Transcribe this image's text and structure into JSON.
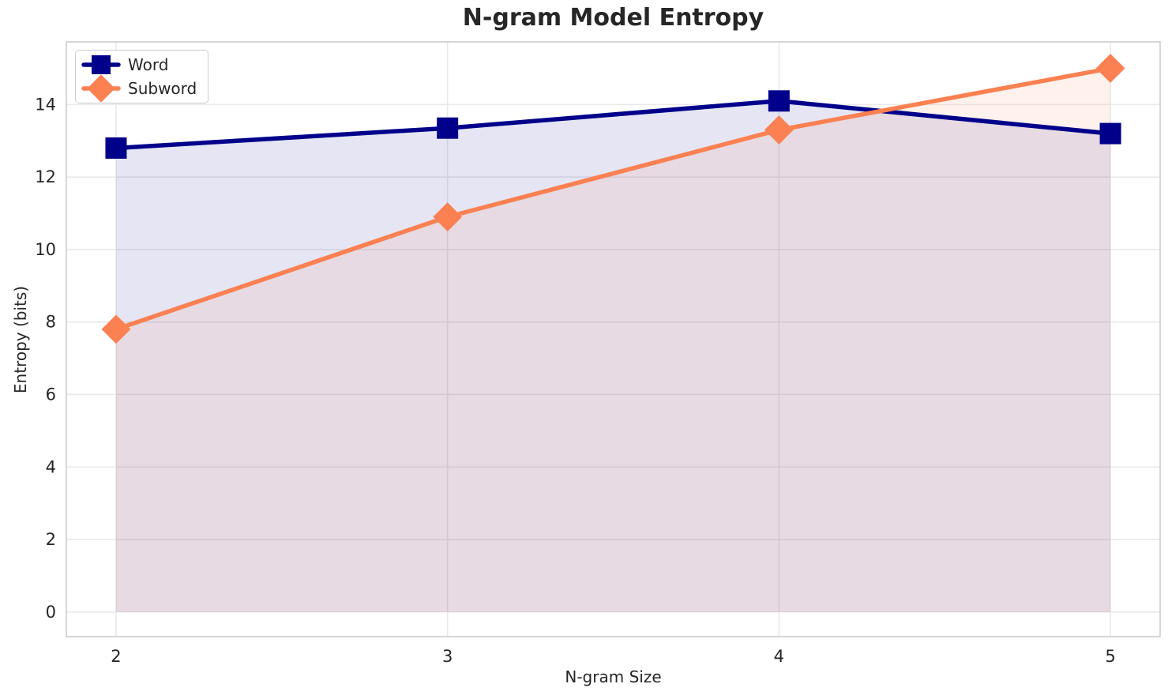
{
  "chart_data": {
    "type": "line",
    "title": "N-gram Model Entropy",
    "xlabel": "N-gram Size",
    "ylabel": "Entropy (bits)",
    "x": [
      2,
      3,
      4,
      5
    ],
    "series": [
      {
        "name": "Word",
        "values": [
          12.8,
          13.35,
          14.1,
          13.2
        ],
        "color": "#00008b",
        "marker": "square"
      },
      {
        "name": "Subword",
        "values": [
          7.8,
          10.9,
          13.3,
          15.0
        ],
        "color": "#fb8052",
        "marker": "diamond"
      }
    ],
    "xticks": [
      2,
      3,
      4,
      5
    ],
    "yticks": [
      0,
      2,
      4,
      6,
      8,
      10,
      12,
      14
    ],
    "xlim": [
      1.85,
      5.15
    ],
    "ylim": [
      -0.68,
      15.73
    ],
    "grid": true,
    "legend_position": "upper left",
    "fill_to_zero": true,
    "fill_opacity": 0.1,
    "line_width": 5.5,
    "background_color": "#ffffff",
    "grid_color": "#e9e9e9",
    "spine_color": "#cccccc",
    "text_color": "#262626"
  }
}
